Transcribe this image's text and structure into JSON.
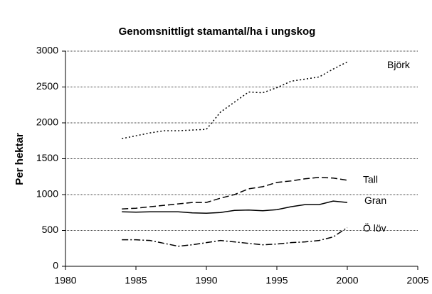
{
  "chart_data": {
    "type": "line",
    "title": "Genomsnittligt stamantal/ha i ungskog",
    "y_label": "Per hektar",
    "x": [
      1984,
      1985,
      1986,
      1987,
      1988,
      1989,
      1990,
      1991,
      1992,
      1993,
      1994,
      1995,
      1996,
      1997,
      1998,
      1999,
      2000
    ],
    "series": [
      {
        "name": "Björk",
        "color": "#000000",
        "dash": "2,3",
        "values": [
          1780,
          1820,
          1860,
          1890,
          1890,
          1900,
          1910,
          2150,
          2290,
          2430,
          2420,
          2490,
          2580,
          2610,
          2640,
          2750,
          2850
        ]
      },
      {
        "name": "Tall",
        "color": "#000000",
        "dash": "9,4",
        "values": [
          800,
          810,
          830,
          850,
          870,
          890,
          890,
          950,
          1000,
          1080,
          1110,
          1170,
          1190,
          1220,
          1240,
          1230,
          1200
        ]
      },
      {
        "name": "Gran",
        "color": "#000000",
        "dash": "none",
        "values": [
          760,
          755,
          760,
          760,
          760,
          745,
          740,
          750,
          780,
          785,
          775,
          790,
          830,
          860,
          860,
          910,
          890
        ]
      },
      {
        "name": "Ö löv",
        "color": "#000000",
        "dash": "9,3,2,3",
        "values": [
          370,
          370,
          360,
          320,
          280,
          300,
          330,
          360,
          340,
          320,
          300,
          310,
          330,
          340,
          360,
          410,
          540
        ]
      }
    ],
    "xlim": [
      1980,
      2005
    ],
    "xticks": [
      1980,
      1985,
      1990,
      1995,
      2000,
      2005
    ],
    "ylim": [
      0,
      3000
    ],
    "yticks": [
      0,
      500,
      1000,
      1500,
      2000,
      2500,
      3000
    ],
    "grid": true
  }
}
